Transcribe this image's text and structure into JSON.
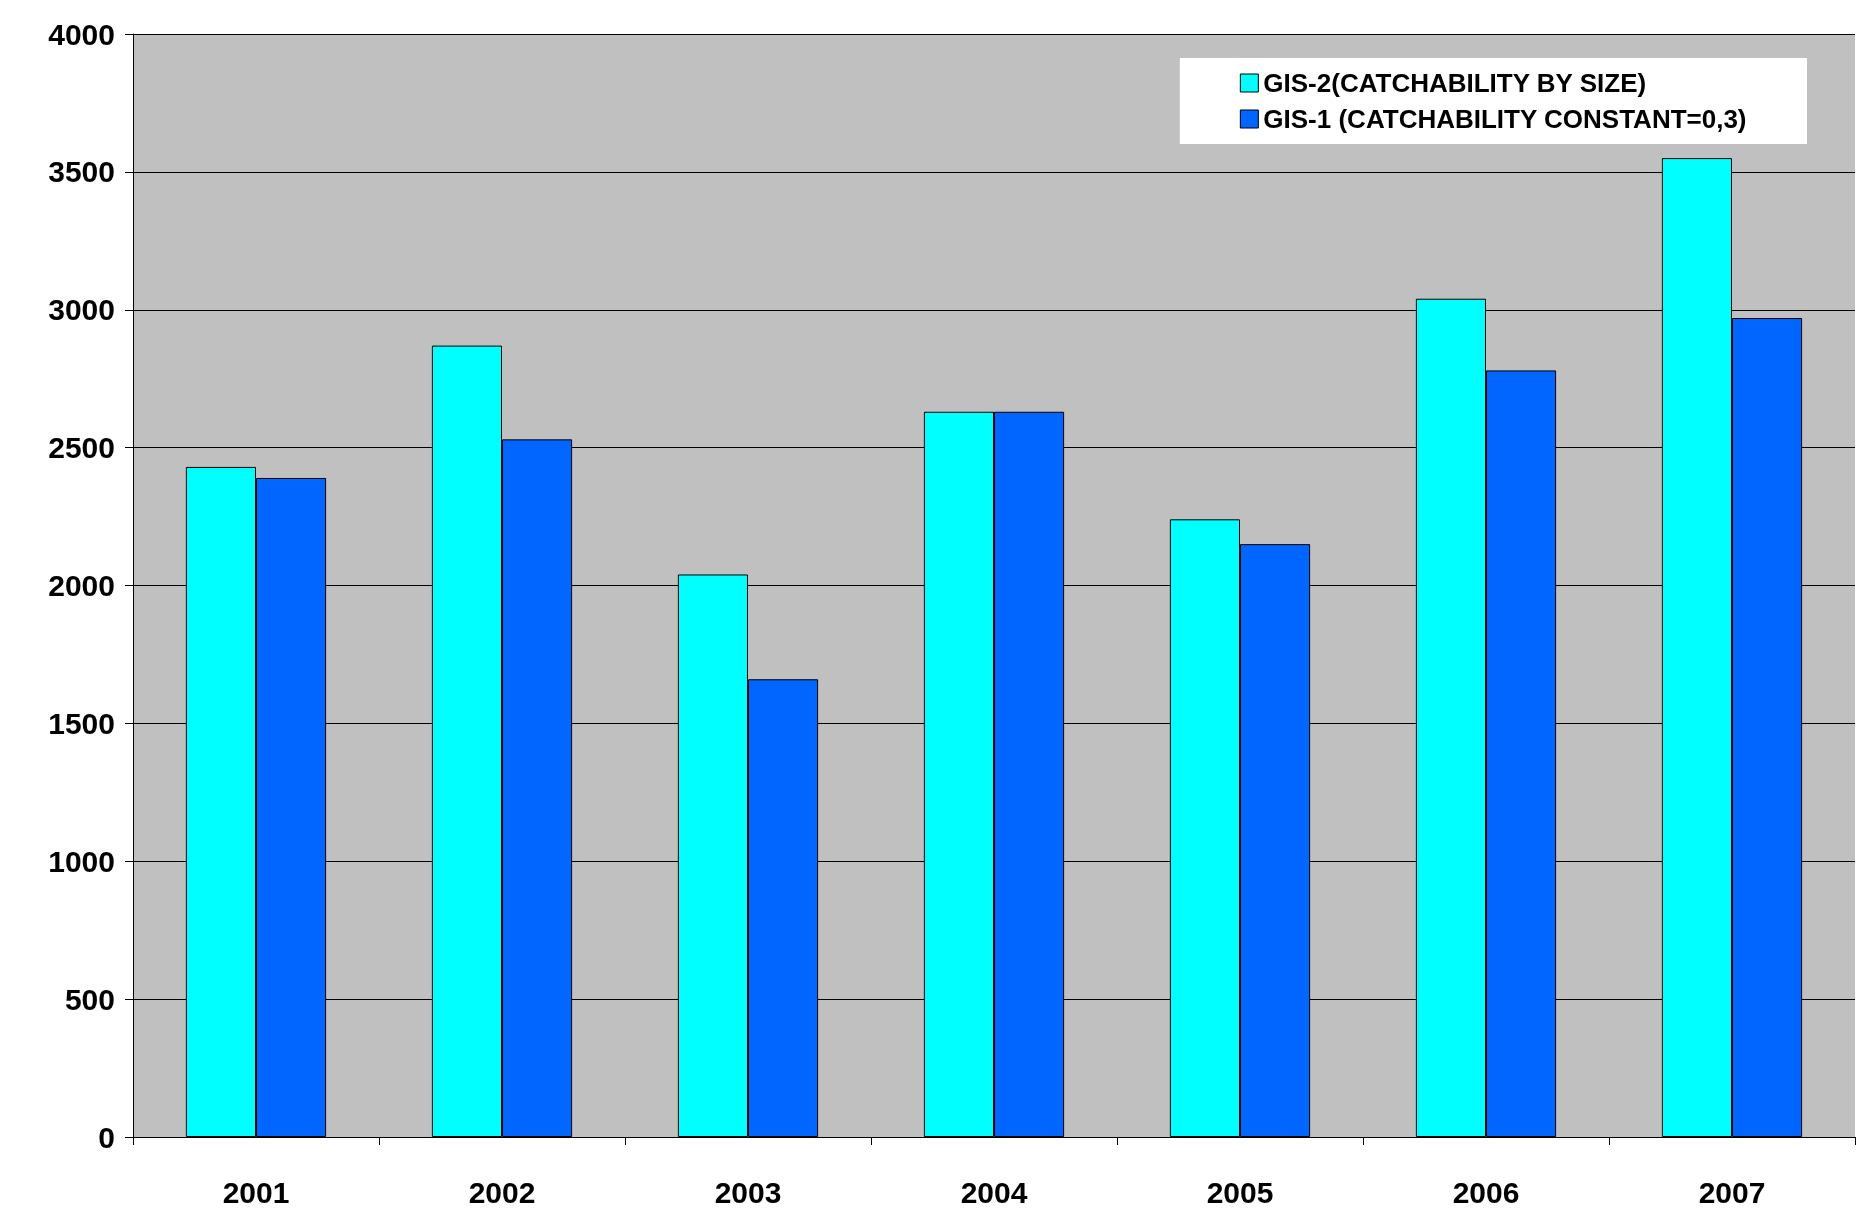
{
  "chart_data": {
    "type": "bar",
    "categories": [
      "2001",
      "2002",
      "2003",
      "2004",
      "2005",
      "2006",
      "2007"
    ],
    "series": [
      {
        "name": "GIS-2(CATCHABILITY BY SIZE)",
        "color": "#00ffff",
        "values": [
          2430,
          2870,
          2040,
          2630,
          2240,
          3040,
          3550
        ]
      },
      {
        "name": "GIS-1 (CATCHABILITY CONSTANT=0,3)",
        "color": "#0066ff",
        "values": [
          2390,
          2530,
          1660,
          2630,
          2150,
          2780,
          2970
        ]
      }
    ],
    "ylim": [
      0,
      4000
    ],
    "yticks": [
      0,
      500,
      1000,
      1500,
      2000,
      2500,
      3000,
      3500,
      4000
    ],
    "grid": "y",
    "legend": "top right"
  }
}
